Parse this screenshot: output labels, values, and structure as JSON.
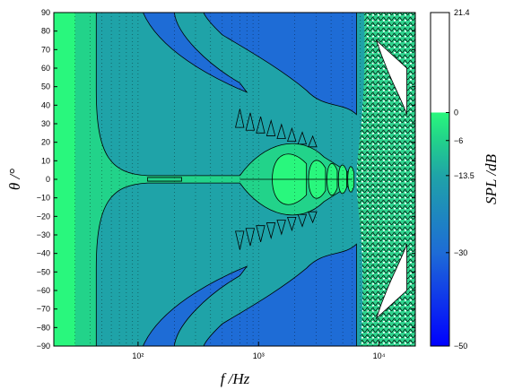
{
  "chart_data": {
    "type": "heatmap",
    "title": "",
    "xlabel": "f  /Hz",
    "ylabel": "θ  /°",
    "colorbar_label": "SPL /dB",
    "xscale": "log",
    "xlim": [
      20,
      20000
    ],
    "ylim": [
      -90,
      90
    ],
    "x_ticks": [
      100,
      1000,
      10000
    ],
    "x_tick_labels": [
      "10²",
      "10³",
      "10⁴"
    ],
    "y_ticks": [
      -90,
      -80,
      -70,
      -60,
      -50,
      -40,
      -30,
      -20,
      -10,
      0,
      10,
      20,
      30,
      40,
      50,
      60,
      70,
      80,
      90
    ],
    "y_tick_labels": [
      "−90",
      "−80",
      "−70",
      "−60",
      "−50",
      "−40",
      "−30",
      "−20",
      "−10",
      "0",
      "10",
      "20",
      "30",
      "40",
      "50",
      "60",
      "70",
      "80",
      "90"
    ],
    "colorbar_range": [
      -50,
      21.4
    ],
    "colorbar_ticks": [
      21.4,
      0,
      -6,
      -13.5,
      -30,
      -50
    ],
    "colorbar_tick_labels": [
      "21.4",
      "0",
      "−6",
      "−13.5",
      "−30",
      "−50"
    ],
    "contour_levels_dB": [
      -50,
      -30,
      -13.5,
      -6,
      0,
      21.4
    ],
    "level_colors": [
      "#0000ff",
      "#1e6cd6",
      "#1fa3a8",
      "#22d38a",
      "#29f77d",
      "#ffffff"
    ],
    "colormap": "linear blue (−50 dB) → teal → green (0 dB), white above 0 dB",
    "grid": "dotted vertical lines at log-decade minor ticks",
    "colorbar": "right"
  }
}
